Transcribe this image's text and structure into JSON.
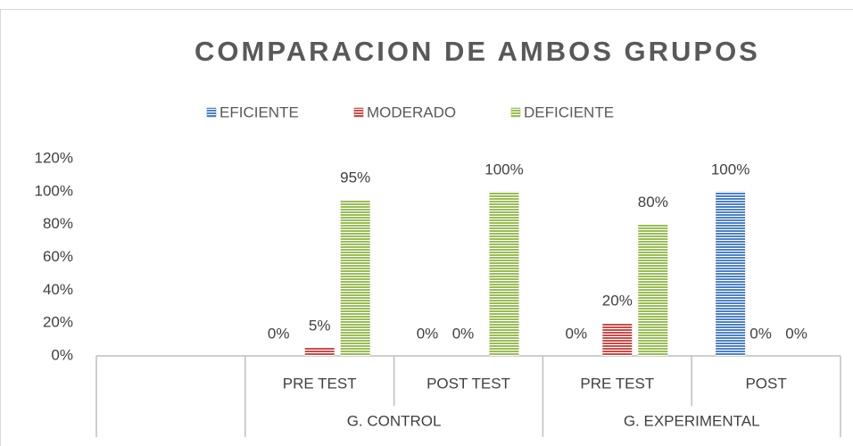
{
  "chart_data": {
    "type": "bar",
    "title": "COMPARACION DE AMBOS GRUPOS",
    "categories": [
      null,
      "PRE TEST",
      "POST TEST",
      "PRE TEST",
      "POST"
    ],
    "category_groups": [
      null,
      "G. CONTROL",
      "G. CONTROL",
      "G. EXPERIMENTAL",
      "G. EXPERIMENTAL"
    ],
    "series": [
      {
        "name": "EFICIENTE",
        "color": "#4f81bd",
        "values": [
          null,
          0,
          0,
          0,
          100
        ],
        "value_labels": [
          null,
          "0%",
          "0%",
          "0%",
          "100%"
        ]
      },
      {
        "name": "MODERADO",
        "color": "#c0504d",
        "values": [
          null,
          5,
          0,
          20,
          0
        ],
        "value_labels": [
          null,
          "5%",
          "0%",
          "20%",
          "0%"
        ]
      },
      {
        "name": "DEFICIENTE",
        "color": "#9bbb59",
        "values": [
          null,
          95,
          100,
          80,
          0
        ],
        "value_labels": [
          null,
          "95%",
          "100%",
          "80%",
          "0%"
        ]
      }
    ],
    "ylim": [
      0,
      120
    ],
    "yticks": [
      {
        "value": 0,
        "label": "0%"
      },
      {
        "value": 20,
        "label": "20%"
      },
      {
        "value": 40,
        "label": "40%"
      },
      {
        "value": 60,
        "label": "60%"
      },
      {
        "value": 80,
        "label": "80%"
      },
      {
        "value": 100,
        "label": "100%"
      },
      {
        "value": 120,
        "label": "120%"
      }
    ],
    "grid": false,
    "legend": "top",
    "pattern": "horizontal-stripes"
  }
}
